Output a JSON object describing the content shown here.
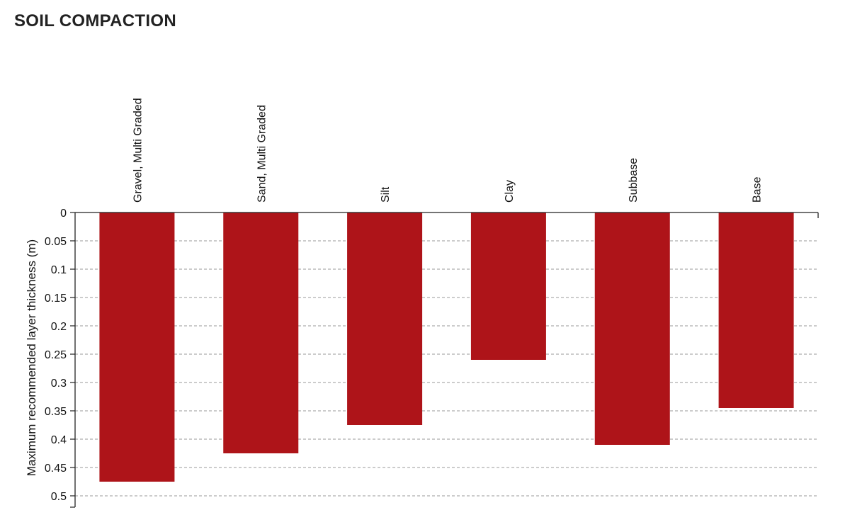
{
  "title": "SOIL COMPACTION",
  "chart_data": {
    "type": "bar",
    "orientation": "vertical-inverted",
    "title": "SOIL COMPACTION",
    "ylabel": "Maximum recommended layer thickness (m)",
    "xlabel": "",
    "categories": [
      "Gravel, Multi Graded",
      "Sand, Multi Graded",
      "Silt",
      "Clay",
      "Subbase",
      "Base"
    ],
    "values": [
      0.475,
      0.425,
      0.375,
      0.26,
      0.41,
      0.345
    ],
    "ylim": [
      0,
      0.5
    ],
    "y_inverted": true,
    "yticks": [
      "0",
      "0.05",
      "0.1",
      "0.15",
      "0.2",
      "0.25",
      "0.3",
      "0.35",
      "0.4",
      "0.45",
      "0.5"
    ],
    "ytick_values": [
      0,
      0.05,
      0.1,
      0.15,
      0.2,
      0.25,
      0.3,
      0.35,
      0.4,
      0.45,
      0.5
    ],
    "grid": true,
    "grid_style": "dashed",
    "category_labels_position": "top",
    "bar_color": "#ae1419"
  }
}
